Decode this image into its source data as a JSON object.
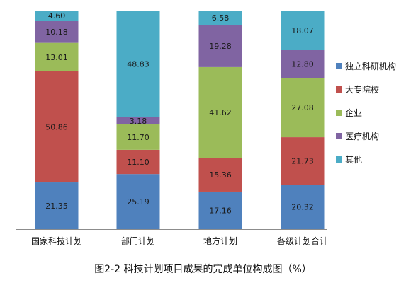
{
  "chart_data": {
    "type": "bar",
    "stacked": true,
    "categories": [
      "国家科技计划",
      "部门计划",
      "地方计划",
      "各级计划合计"
    ],
    "series": [
      {
        "name": "独立科研机构",
        "color": "#4f81bd",
        "values": [
          21.35,
          25.19,
          17.16,
          20.32
        ]
      },
      {
        "name": "大专院校",
        "color": "#c0504d",
        "values": [
          50.86,
          11.1,
          15.36,
          21.73
        ]
      },
      {
        "name": "企业",
        "color": "#9bbb59",
        "values": [
          13.01,
          11.7,
          41.62,
          27.08
        ]
      },
      {
        "name": "医疗机构",
        "color": "#8064a2",
        "values": [
          10.18,
          3.18,
          19.28,
          12.8
        ]
      },
      {
        "name": "其他",
        "color": "#4bacc6",
        "values": [
          4.6,
          48.83,
          6.58,
          18.07
        ]
      }
    ],
    "value_labels": [
      [
        "21.35",
        "25.19",
        "17.16",
        "20.32"
      ],
      [
        "50.86",
        "11.10",
        "15.36",
        "21.73"
      ],
      [
        "13.01",
        "11.70",
        "41.62",
        "27.08"
      ],
      [
        "10.18",
        "3.18",
        "19.28",
        "12.80"
      ],
      [
        "4.60",
        "48.83",
        "6.58",
        "18.07"
      ]
    ],
    "ylim": [
      0,
      100
    ],
    "legend_position": "right",
    "grid": false
  },
  "caption": "图2-2 科技计划项目成果的完成单位构成图（%）"
}
